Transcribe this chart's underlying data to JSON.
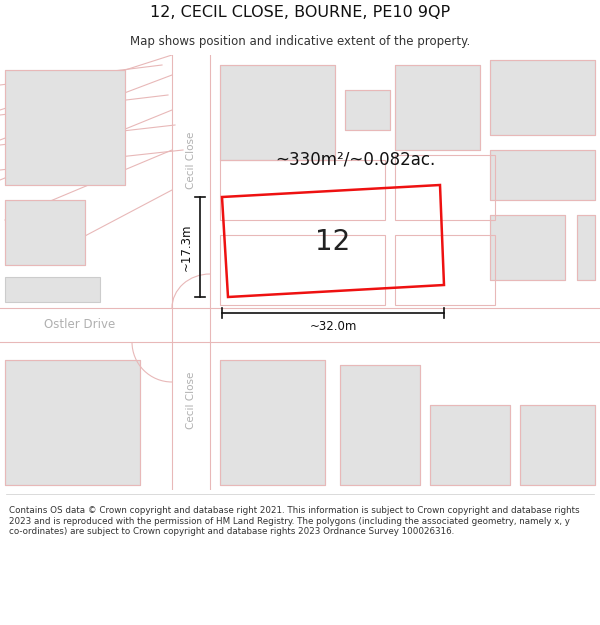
{
  "title": "12, CECIL CLOSE, BOURNE, PE10 9QP",
  "subtitle": "Map shows position and indicative extent of the property.",
  "footer": "Contains OS data © Crown copyright and database right 2021. This information is subject to Crown copyright and database rights 2023 and is reproduced with the permission of HM Land Registry. The polygons (including the associated geometry, namely x, y co-ordinates) are subject to Crown copyright and database rights 2023 Ordnance Survey 100026316.",
  "bg_color": "#ffffff",
  "map_bg": "#f2f2f2",
  "road_color": "#ffffff",
  "road_pink": "#e8b8b8",
  "bld_fill": "#e2e2e2",
  "bld_outline": "#cccccc",
  "plot_color": "#ee1111",
  "area_text": "~330m²/~0.082ac.",
  "number_label": "12",
  "dim_width": "~32.0m",
  "dim_height": "~17.3m",
  "street_upper": "Cecil Close",
  "street_lower": "Cecil Close",
  "street_horiz": "Ostler Drive"
}
